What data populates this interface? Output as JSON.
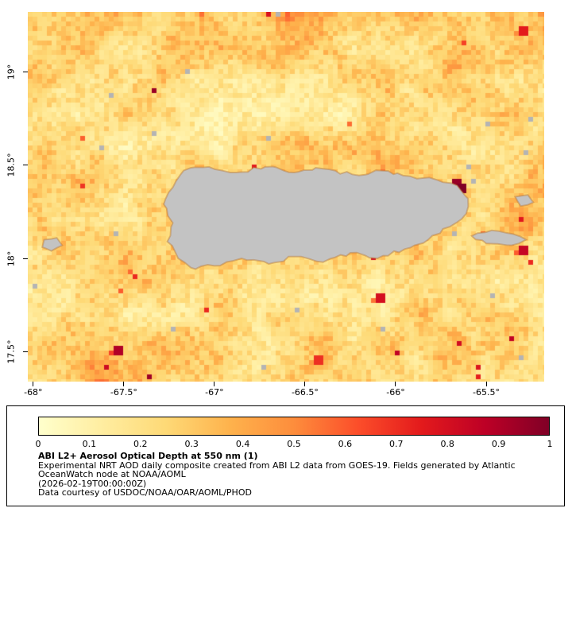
{
  "page": {
    "background": "#ffffff"
  },
  "map": {
    "x_tick_labels": [
      "-68°",
      "-67.5°",
      "-67°",
      "-66.5°",
      "-66°",
      "-65.5°"
    ],
    "y_tick_labels": [
      "19°",
      "18.5°",
      "18°",
      "17.5°"
    ],
    "land_color": "#c3c3c3",
    "frame_color": "#000000"
  },
  "legend": {
    "title": "ABI L2+ Aerosol Optical Depth at 550 nm (1)",
    "desc_line1": "Experimental NRT AOD daily composite created from ABI L2 data from GOES-19. Fields generated by Atlantic",
    "desc_line2": "OceanWatch node at NOAA/AOML",
    "timestamp": "(2026-02-19T00:00:00Z)",
    "courtesy": "Data courtesy of USDOC/NOAA/OAR/AOML/PHOD",
    "tick_labels": [
      "0",
      "0.1",
      "0.2",
      "0.3",
      "0.4",
      "0.5",
      "0.6",
      "0.7",
      "0.8",
      "0.9",
      "1"
    ]
  },
  "chart_data": {
    "type": "heatmap",
    "title": "ABI L2+ Aerosol Optical Depth at 550 nm (1)",
    "variable": "Aerosol Optical Depth (AOD) at 550 nm",
    "source": "GOES-19 ABI L2 NRT daily composite, Atlantic OceanWatch node at NOAA/AOML",
    "date": "2026-02-19T00:00:00Z",
    "lon_range": [
      -68.03,
      -65.18
    ],
    "lat_range": [
      17.34,
      19.32
    ],
    "x_ticks": [
      -68,
      -67.5,
      -67,
      -66.5,
      -66,
      -65.5
    ],
    "y_ticks": [
      19,
      18.5,
      18,
      17.5
    ],
    "value_range": [
      0,
      1
    ],
    "grid": false,
    "legend_position": "bottom-colorbar",
    "colorbar_ticks": [
      0,
      0.1,
      0.2,
      0.3,
      0.4,
      0.5,
      0.6,
      0.7,
      0.8,
      0.9,
      1
    ],
    "colormap": "YlOrRd",
    "colormap_stops": [
      {
        "v": 0,
        "c": "#ffffcc"
      },
      {
        "v": 0.125,
        "c": "#ffeda0"
      },
      {
        "v": 0.25,
        "c": "#fed976"
      },
      {
        "v": 0.375,
        "c": "#feb24c"
      },
      {
        "v": 0.5,
        "c": "#fd8d3c"
      },
      {
        "v": 0.625,
        "c": "#fc4e2a"
      },
      {
        "v": 0.75,
        "c": "#e31a1c"
      },
      {
        "v": 0.875,
        "c": "#bd0026"
      },
      {
        "v": 1,
        "c": "#800026"
      }
    ],
    "background_field": {
      "typical_range": [
        0.05,
        0.45
      ],
      "pattern": "speckled ocean AOD field, mostly 0.1-0.3 pale yellow with orange patches and rare dark-red spikes"
    },
    "land_masked_areas": [
      "Puerto Rico",
      "Mona Island",
      "Vieques",
      "Culebra"
    ],
    "land_polygons": {
      "puerto_rico": [
        [
          -67.17,
          18.47
        ],
        [
          -67.03,
          18.49
        ],
        [
          -66.88,
          18.46
        ],
        [
          -66.72,
          18.49
        ],
        [
          -66.56,
          18.46
        ],
        [
          -66.4,
          18.48
        ],
        [
          -66.24,
          18.45
        ],
        [
          -66.08,
          18.47
        ],
        [
          -65.92,
          18.44
        ],
        [
          -65.77,
          18.42
        ],
        [
          -65.66,
          18.39
        ],
        [
          -65.6,
          18.32
        ],
        [
          -65.61,
          18.24
        ],
        [
          -65.7,
          18.17
        ],
        [
          -65.82,
          18.1
        ],
        [
          -65.95,
          18.05
        ],
        [
          -66.1,
          18.0
        ],
        [
          -66.25,
          18.03
        ],
        [
          -66.4,
          17.98
        ],
        [
          -66.55,
          18.01
        ],
        [
          -66.7,
          17.97
        ],
        [
          -66.85,
          18.0
        ],
        [
          -67.0,
          17.96
        ],
        [
          -67.13,
          17.95
        ],
        [
          -67.2,
          18.0
        ],
        [
          -67.26,
          18.09
        ],
        [
          -67.23,
          18.19
        ],
        [
          -67.28,
          18.29
        ],
        [
          -67.23,
          18.38
        ]
      ],
      "mona": [
        [
          -67.94,
          18.1
        ],
        [
          -67.87,
          18.11
        ],
        [
          -67.84,
          18.07
        ],
        [
          -67.9,
          18.04
        ],
        [
          -67.95,
          18.06
        ]
      ],
      "vieques": [
        [
          -65.58,
          18.12
        ],
        [
          -65.47,
          18.15
        ],
        [
          -65.35,
          18.13
        ],
        [
          -65.28,
          18.1
        ],
        [
          -65.36,
          18.07
        ],
        [
          -65.5,
          18.08
        ]
      ],
      "culebra": [
        [
          -65.34,
          18.33
        ],
        [
          -65.27,
          18.34
        ],
        [
          -65.24,
          18.3
        ],
        [
          -65.31,
          18.28
        ]
      ]
    },
    "hotspots": [
      {
        "lon": -65.7,
        "lat": 18.42,
        "aod": 0.95
      },
      {
        "lon": -65.65,
        "lat": 18.39,
        "aod": 1.0
      },
      {
        "lon": -65.68,
        "lat": 18.36,
        "aod": 0.85
      },
      {
        "lon": -65.31,
        "lat": 18.08,
        "aod": 0.85
      },
      {
        "lon": -67.56,
        "lat": 17.52,
        "aod": 0.9
      },
      {
        "lon": -66.1,
        "lat": 17.82,
        "aod": 0.8
      },
      {
        "lon": -65.33,
        "lat": 19.25,
        "aod": 0.75
      },
      {
        "lon": -66.45,
        "lat": 17.48,
        "aod": 0.7
      }
    ]
  }
}
